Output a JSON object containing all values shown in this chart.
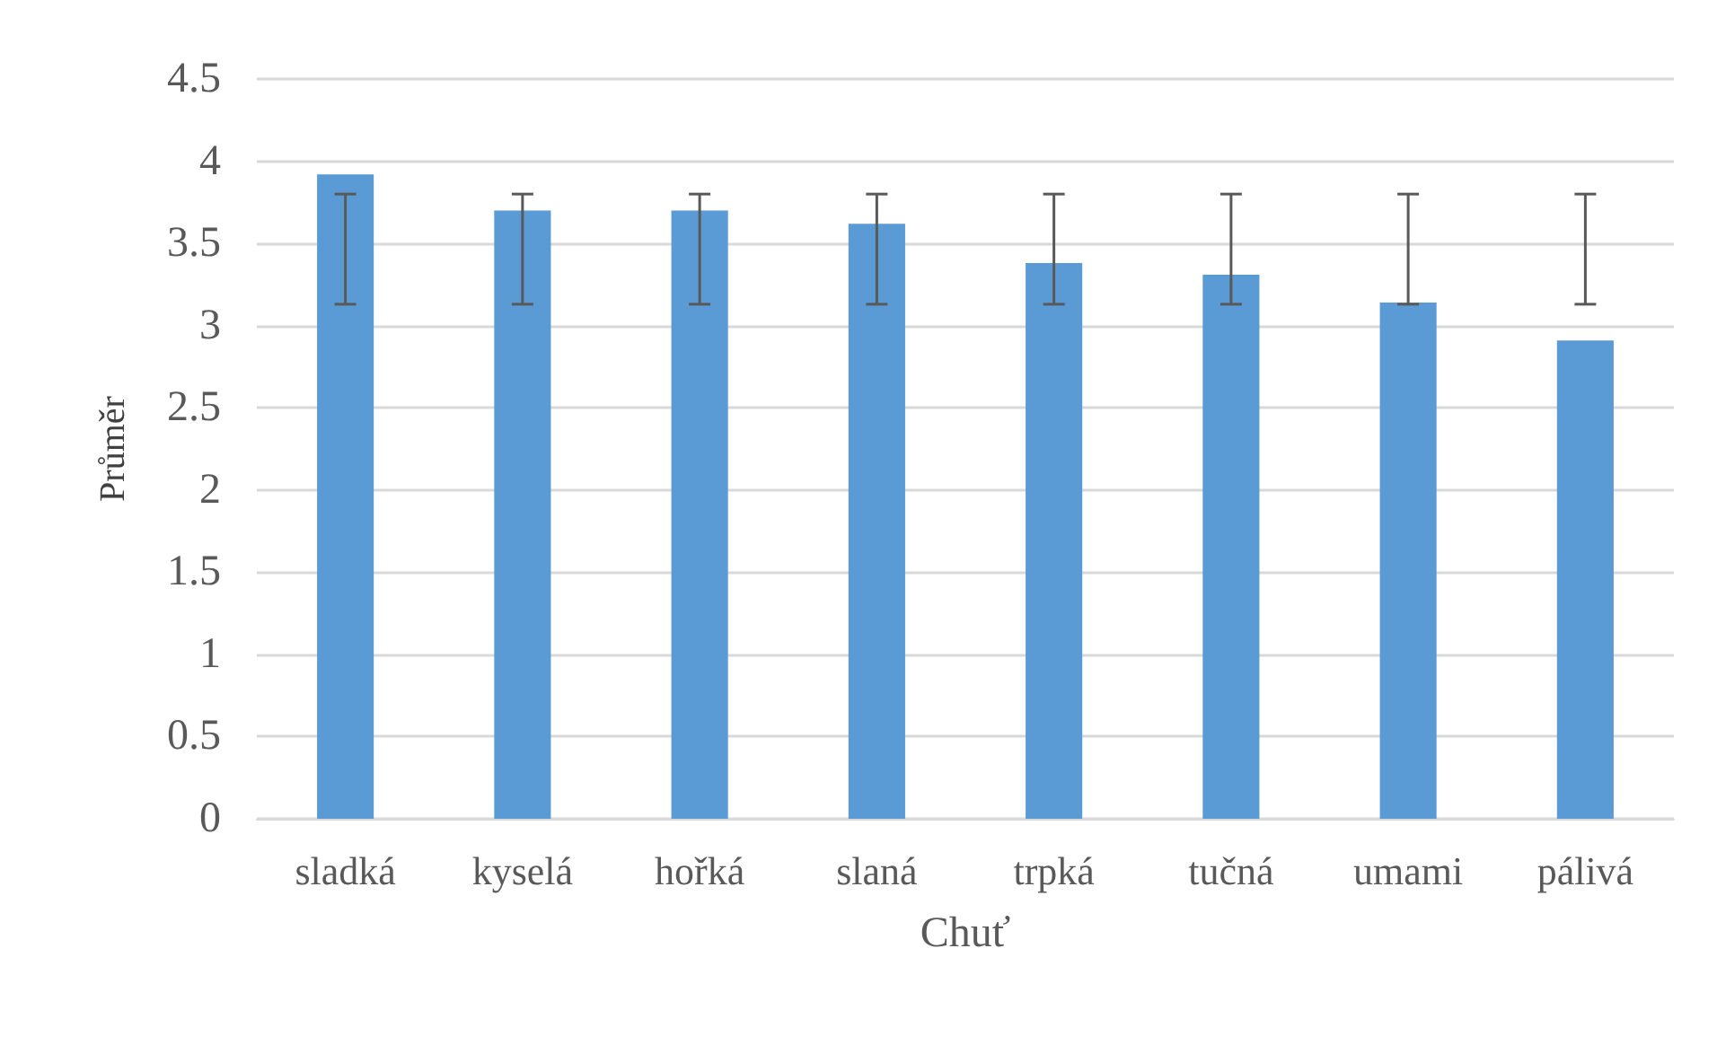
{
  "chart_data": {
    "type": "bar",
    "xlabel": "Chuť",
    "ylabel": "Průměr",
    "categories": [
      "sladká",
      "kyselá",
      "hořká",
      "slaná",
      "trpká",
      "tučná",
      "umami",
      "pálivá"
    ],
    "values": [
      3.92,
      3.7,
      3.7,
      3.62,
      3.38,
      3.31,
      3.14,
      2.91
    ],
    "errors": [
      [
        3.13,
        3.8
      ],
      [
        3.13,
        3.8
      ],
      [
        3.13,
        3.8
      ],
      [
        3.13,
        3.8
      ],
      [
        3.13,
        3.8
      ],
      [
        3.13,
        3.8
      ],
      [
        3.13,
        3.8
      ],
      [
        3.13,
        3.8
      ]
    ],
    "color": "#5b9bd5",
    "ylim": [
      0,
      4.5
    ],
    "yticks": [
      0,
      0.5,
      1,
      1.5,
      2,
      2.5,
      3,
      3.5,
      4,
      4.5
    ],
    "grid": "y"
  }
}
